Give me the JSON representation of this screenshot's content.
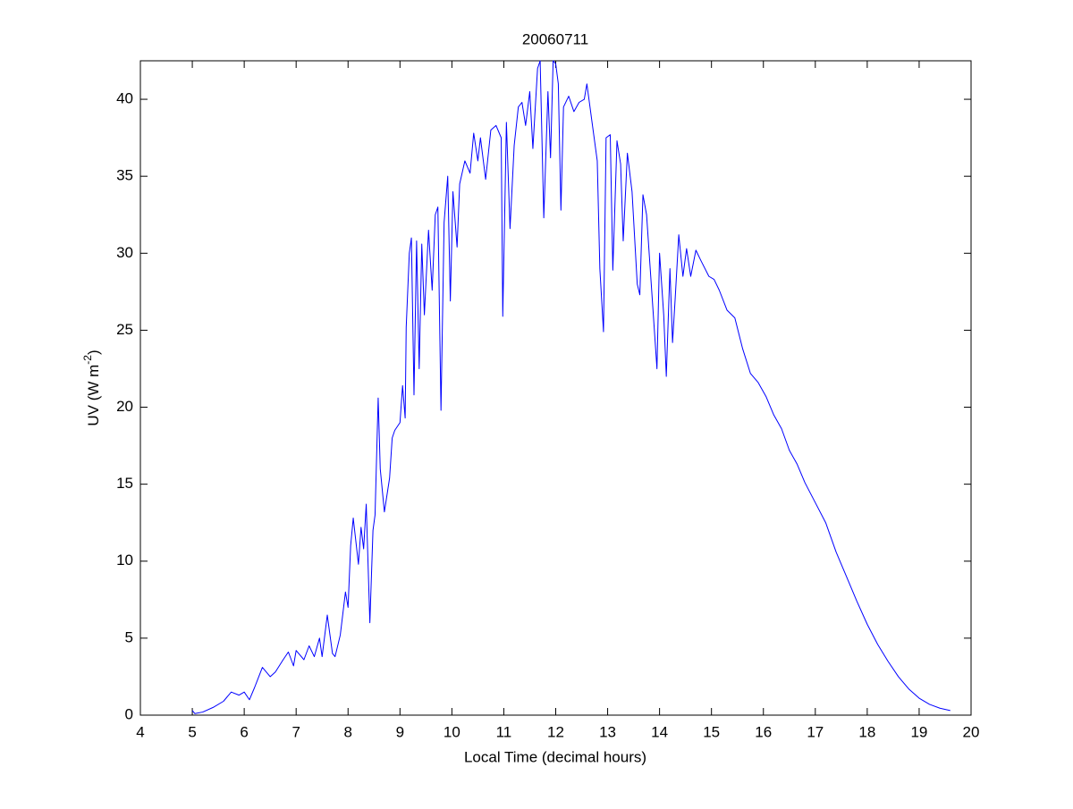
{
  "chart_data": {
    "type": "line",
    "title": "20060711",
    "x_label": "Local Time (decimal hours)",
    "y_label": [
      "UV (W m",
      "-2",
      ")"
    ],
    "xlim": [
      4,
      20
    ],
    "xticks": [
      4,
      5,
      6,
      7,
      8,
      9,
      10,
      11,
      12,
      13,
      14,
      15,
      16,
      17,
      18,
      19,
      20
    ],
    "ylim": [
      0,
      42.5
    ],
    "yticks": [
      0,
      5,
      10,
      15,
      20,
      25,
      30,
      35,
      40
    ],
    "grid": false,
    "series": [
      {
        "color": "#0000ff",
        "x": [
          5.0,
          5.05,
          5.2,
          5.4,
          5.6,
          5.75,
          5.9,
          6.0,
          6.1,
          6.2,
          6.35,
          6.5,
          6.6,
          6.75,
          6.85,
          6.95,
          7.0,
          7.15,
          7.25,
          7.35,
          7.45,
          7.5,
          7.6,
          7.7,
          7.75,
          7.85,
          7.95,
          8.0,
          8.05,
          8.1,
          8.2,
          8.25,
          8.3,
          8.35,
          8.42,
          8.48,
          8.52,
          8.58,
          8.62,
          8.7,
          8.8,
          8.85,
          8.9,
          9.0,
          9.05,
          9.1,
          9.12,
          9.18,
          9.22,
          9.27,
          9.32,
          9.37,
          9.42,
          9.47,
          9.55,
          9.62,
          9.68,
          9.73,
          9.79,
          9.85,
          9.92,
          9.97,
          10.02,
          10.1,
          10.15,
          10.25,
          10.35,
          10.42,
          10.5,
          10.55,
          10.65,
          10.75,
          10.85,
          10.95,
          10.98,
          11.05,
          11.12,
          11.2,
          11.28,
          11.35,
          11.42,
          11.5,
          11.56,
          11.65,
          11.7,
          11.77,
          11.85,
          11.9,
          11.95,
          12.0,
          12.05,
          12.1,
          12.15,
          12.25,
          12.35,
          12.45,
          12.55,
          12.6,
          12.7,
          12.8,
          12.85,
          12.92,
          12.97,
          13.05,
          13.1,
          13.18,
          13.25,
          13.3,
          13.38,
          13.47,
          13.57,
          13.62,
          13.68,
          13.75,
          13.82,
          13.9,
          13.95,
          14.0,
          14.08,
          14.13,
          14.2,
          14.25,
          14.3,
          14.37,
          14.45,
          14.52,
          14.6,
          14.7,
          14.8,
          14.95,
          15.05,
          15.15,
          15.3,
          15.45,
          15.6,
          15.75,
          15.9,
          16.05,
          16.2,
          16.35,
          16.5,
          16.65,
          16.8,
          17.0,
          17.2,
          17.4,
          17.6,
          17.8,
          18.0,
          18.2,
          18.4,
          18.6,
          18.8,
          19.0,
          19.2,
          19.4,
          19.6
        ],
        "values": [
          0.3,
          0.1,
          0.2,
          0.5,
          0.9,
          1.5,
          1.3,
          1.5,
          1.0,
          1.8,
          3.1,
          2.5,
          2.8,
          3.6,
          4.1,
          3.2,
          4.2,
          3.6,
          4.5,
          3.8,
          5.0,
          3.8,
          6.5,
          4.0,
          3.8,
          5.2,
          8.0,
          7.0,
          11.0,
          12.8,
          9.8,
          12.2,
          10.8,
          13.7,
          6.0,
          12.0,
          13.0,
          20.6,
          16.0,
          13.2,
          15.4,
          18.0,
          18.5,
          19.0,
          21.4,
          19.3,
          25.2,
          30.0,
          31.0,
          20.8,
          30.8,
          22.5,
          30.6,
          26.0,
          31.5,
          27.6,
          32.5,
          33.0,
          19.8,
          32.0,
          35.0,
          26.9,
          34.0,
          30.4,
          34.5,
          36.0,
          35.2,
          37.8,
          36.0,
          37.5,
          34.8,
          38.0,
          38.3,
          37.5,
          25.9,
          38.5,
          31.6,
          37.0,
          39.5,
          39.8,
          38.3,
          40.5,
          36.8,
          42.0,
          42.5,
          32.3,
          40.5,
          36.2,
          42.5,
          42.3,
          41.0,
          32.8,
          39.5,
          40.2,
          39.2,
          39.8,
          40.0,
          41.0,
          38.5,
          36.0,
          29.0,
          24.9,
          37.5,
          37.7,
          28.9,
          37.3,
          35.8,
          30.8,
          36.5,
          34.0,
          28.0,
          27.3,
          33.8,
          32.5,
          29.0,
          25.0,
          22.5,
          30.0,
          26.0,
          22.0,
          29.0,
          24.2,
          27.0,
          31.2,
          28.5,
          30.3,
          28.5,
          30.2,
          29.5,
          28.5,
          28.3,
          27.6,
          26.3,
          25.8,
          23.8,
          22.2,
          21.6,
          20.7,
          19.5,
          18.6,
          17.2,
          16.3,
          15.1,
          13.8,
          12.5,
          10.6,
          9.0,
          7.4,
          5.9,
          4.6,
          3.5,
          2.5,
          1.7,
          1.1,
          0.7,
          0.45,
          0.3
        ]
      }
    ]
  }
}
